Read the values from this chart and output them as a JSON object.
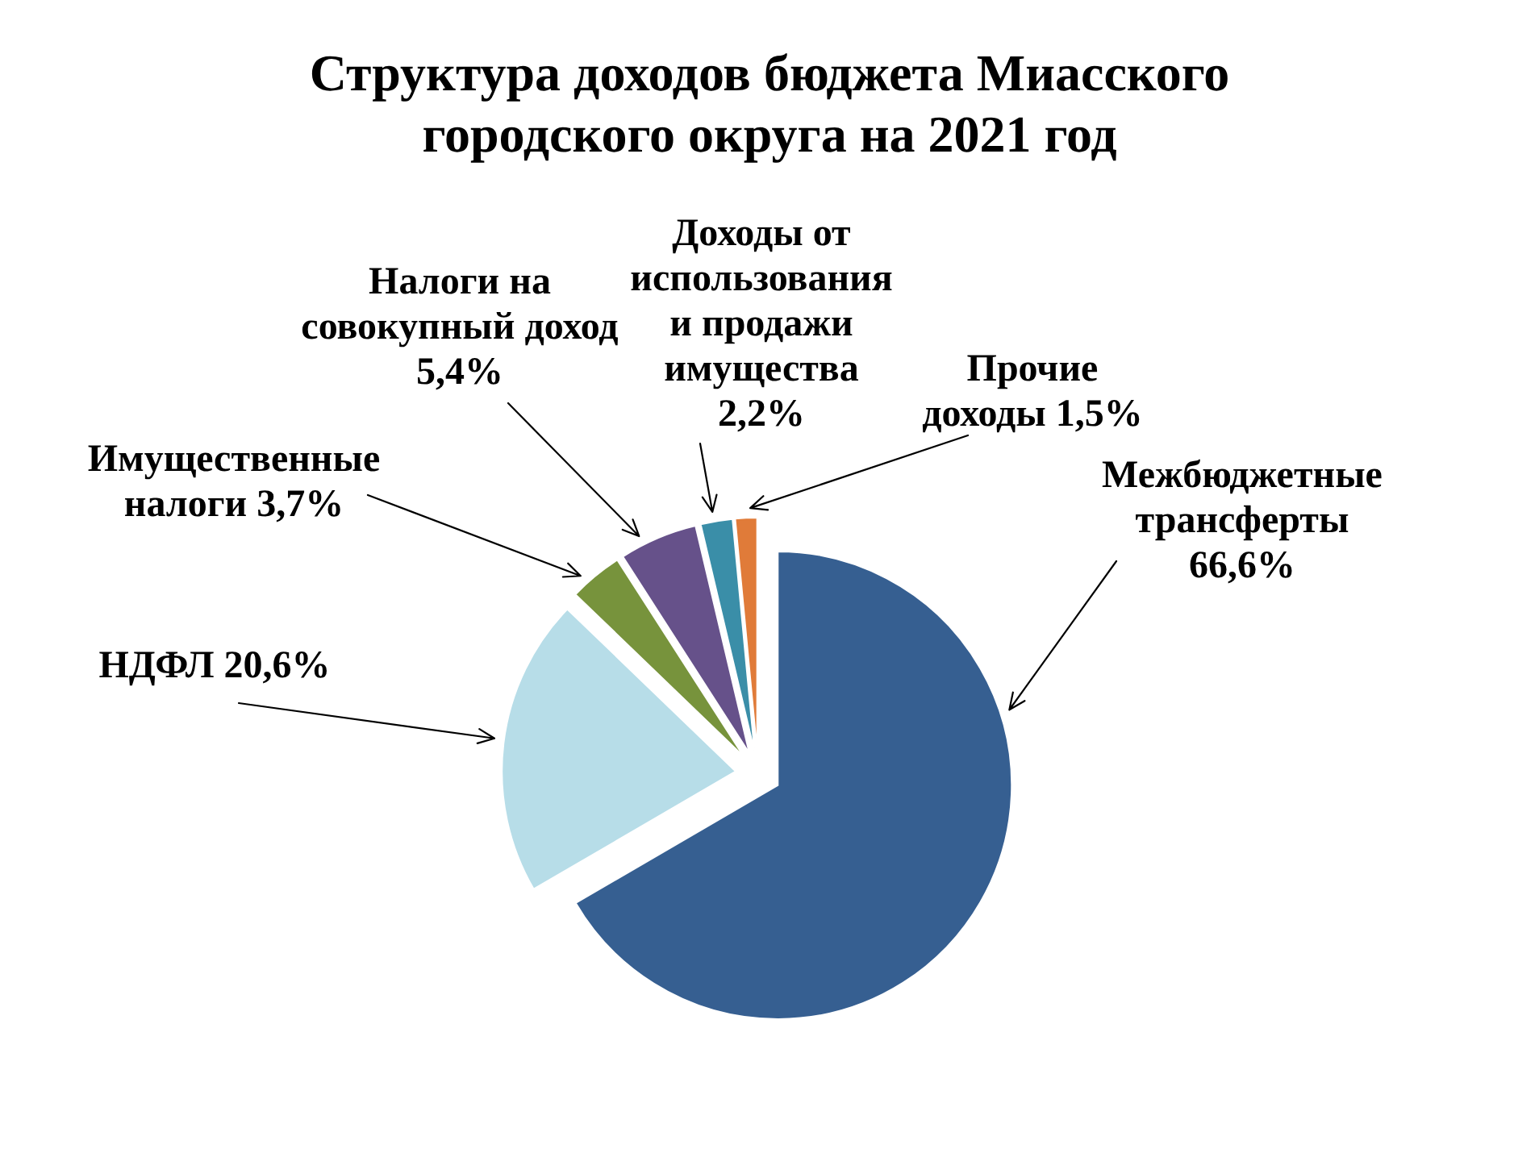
{
  "chart_data": {
    "type": "pie",
    "title": "Структура доходов бюджета Миасского городского округа на 2021 год",
    "categories": [
      "Межбюджетные трансферты",
      "НДФЛ",
      "Имущественные налоги",
      "Налоги на совокупный доход",
      "Доходы от использования и продажи имущества",
      "Прочие доходы"
    ],
    "values": [
      66.6,
      20.6,
      3.7,
      5.4,
      2.2,
      1.5
    ],
    "colors": [
      "#365f91",
      "#b7dde8",
      "#77933c",
      "#66518a",
      "#3a8ea8",
      "#e07b39"
    ],
    "value_labels": [
      "66,6%",
      "20,6%",
      "3,7%",
      "5,4%",
      "2,2%",
      "1,5%"
    ]
  }
}
